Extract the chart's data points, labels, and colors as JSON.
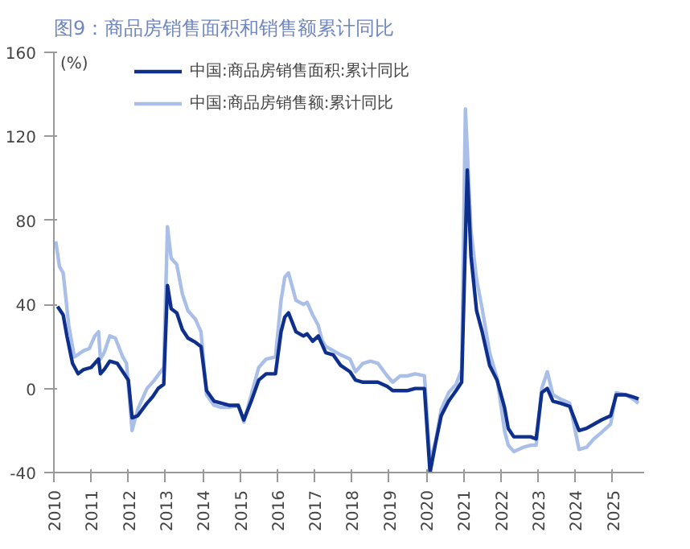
{
  "chart_data": {
    "type": "line",
    "title": "图9：商品房销售面积和销售额累计同比",
    "ylabel": "(%)",
    "xlim": [
      2010,
      2025.85
    ],
    "xticks": [
      2010,
      2011,
      2012,
      2013,
      2014,
      2015,
      2016,
      2017,
      2018,
      2019,
      2020,
      2021,
      2022,
      2023,
      2024,
      2025
    ],
    "ylim": [
      -40,
      160
    ],
    "yticks": [
      -40,
      0,
      40,
      80,
      120,
      160
    ],
    "grid": false,
    "legend": "top",
    "marker": "none",
    "line_style": "solid",
    "series": [
      {
        "name": "中国:商品房销售面积:累计同比",
        "color": "#0e2f8c",
        "x": [
          2010.1,
          2010.25,
          2010.35,
          2010.5,
          2010.65,
          2010.8,
          2011.0,
          2011.15,
          2011.2,
          2011.25,
          2011.35,
          2011.5,
          2011.7,
          2011.85,
          2012.0,
          2012.1,
          2012.25,
          2012.5,
          2012.65,
          2012.8,
          2012.95,
          2013.05,
          2013.15,
          2013.3,
          2013.45,
          2013.6,
          2013.8,
          2013.95,
          2014.1,
          2014.3,
          2014.5,
          2014.7,
          2014.95,
          2015.1,
          2015.3,
          2015.5,
          2015.7,
          2015.95,
          2016.1,
          2016.2,
          2016.3,
          2016.5,
          2016.7,
          2016.8,
          2016.95,
          2017.1,
          2017.3,
          2017.5,
          2017.7,
          2017.95,
          2018.1,
          2018.3,
          2018.5,
          2018.7,
          2018.95,
          2019.1,
          2019.3,
          2019.5,
          2019.7,
          2019.95,
          2020.1,
          2020.25,
          2020.4,
          2020.6,
          2020.8,
          2020.95,
          2021.1,
          2021.2,
          2021.35,
          2021.5,
          2021.7,
          2021.9,
          2022.1,
          2022.2,
          2022.35,
          2022.6,
          2022.8,
          2022.95,
          2023.1,
          2023.25,
          2023.4,
          2023.6,
          2023.85,
          2024.1,
          2024.3,
          2024.5,
          2024.7,
          2024.95,
          2025.1,
          2025.35,
          2025.55,
          2025.7
        ],
        "values": [
          39,
          35,
          25,
          12,
          7,
          9,
          10,
          13,
          14,
          7,
          9,
          13,
          12,
          8,
          4,
          -14,
          -13,
          -7,
          -4,
          0,
          2,
          49,
          38,
          36,
          28,
          24,
          22,
          20,
          -1,
          -6,
          -7,
          -8,
          -8,
          -15,
          -6,
          4,
          7,
          7,
          27,
          34,
          36,
          27,
          25,
          26,
          22.5,
          25,
          17,
          16,
          11,
          8,
          4,
          3,
          3,
          3,
          1,
          -1,
          -1,
          -1,
          0,
          0,
          -40,
          -26,
          -13,
          -6,
          -1,
          3,
          104,
          63,
          37,
          27,
          11,
          4,
          -9,
          -19,
          -23,
          -23,
          -23,
          -24,
          -2,
          0,
          -6,
          -7,
          -8.5,
          -20,
          -19,
          -17,
          -15,
          -13,
          -3,
          -3,
          -4,
          -5
        ]
      },
      {
        "name": "中国:商品房销售额:累计同比",
        "color": "#a9bfe8",
        "x": [
          2010.05,
          2010.15,
          2010.25,
          2010.4,
          2010.55,
          2010.8,
          2010.95,
          2011.1,
          2011.2,
          2011.25,
          2011.35,
          2011.5,
          2011.65,
          2011.85,
          2011.95,
          2012.1,
          2012.25,
          2012.5,
          2012.7,
          2012.95,
          2013.05,
          2013.15,
          2013.3,
          2013.45,
          2013.6,
          2013.8,
          2013.95,
          2014.1,
          2014.3,
          2014.5,
          2014.7,
          2014.95,
          2015.1,
          2015.3,
          2015.5,
          2015.7,
          2015.95,
          2016.1,
          2016.2,
          2016.3,
          2016.5,
          2016.7,
          2016.8,
          2016.95,
          2017.1,
          2017.2,
          2017.3,
          2017.5,
          2017.7,
          2017.95,
          2018.1,
          2018.3,
          2018.5,
          2018.7,
          2018.95,
          2019.1,
          2019.3,
          2019.5,
          2019.7,
          2019.95,
          2020.1,
          2020.25,
          2020.4,
          2020.6,
          2020.8,
          2020.95,
          2021.05,
          2021.2,
          2021.35,
          2021.5,
          2021.7,
          2021.9,
          2022.1,
          2022.2,
          2022.35,
          2022.6,
          2022.8,
          2022.95,
          2023.1,
          2023.25,
          2023.4,
          2023.6,
          2023.85,
          2024.1,
          2024.3,
          2024.5,
          2024.7,
          2024.95,
          2025.1,
          2025.35,
          2025.55,
          2025.7
        ],
        "values": [
          70,
          58,
          55,
          30,
          15,
          18,
          19,
          25,
          27,
          14,
          17,
          25,
          24,
          15,
          12,
          -20,
          -10,
          0,
          4,
          10,
          77,
          62,
          59,
          45,
          37,
          33,
          27,
          -3,
          -8,
          -9,
          -9,
          -8,
          -16,
          -3,
          10,
          14,
          15,
          42,
          53,
          55,
          42,
          40,
          41,
          35,
          30,
          23,
          20,
          18,
          16,
          14,
          8,
          12,
          13,
          12,
          6,
          3,
          6,
          6,
          7,
          6,
          -35,
          -25,
          -10,
          -2,
          2,
          9,
          133,
          75,
          52,
          38,
          17,
          5,
          -20,
          -27,
          -30,
          -28,
          -27,
          -27,
          0,
          8,
          -3,
          -5,
          -7,
          -29,
          -28,
          -24,
          -21,
          -17,
          -2,
          -3,
          -5,
          -7
        ]
      }
    ]
  }
}
